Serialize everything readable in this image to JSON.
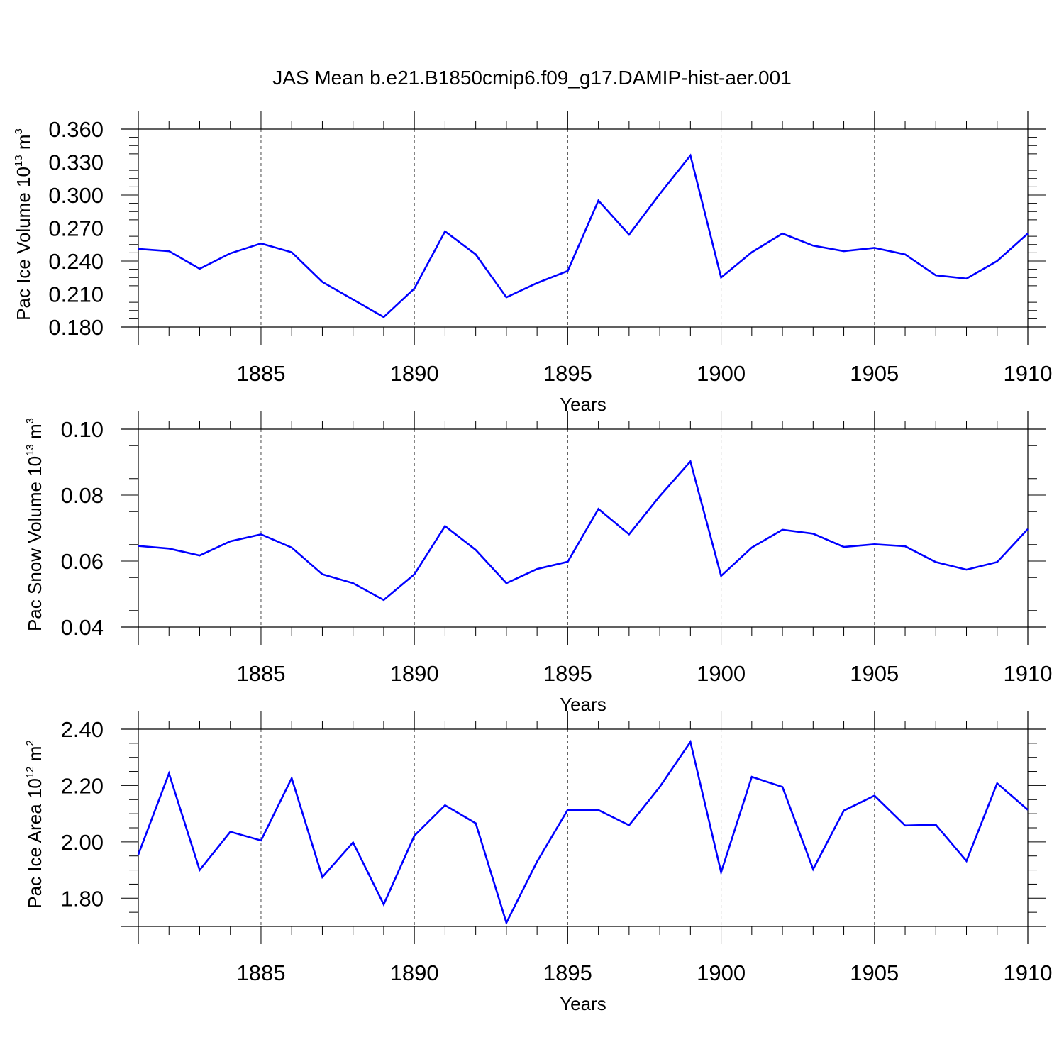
{
  "title": "JAS Mean b.e21.B1850cmip6.f09_g17.DAMIP-hist-aer.001",
  "colors": {
    "line": "#0000ff",
    "axes": "#000000",
    "grid": "#000000",
    "background": "#ffffff"
  },
  "chart_data": [
    {
      "type": "line",
      "xlabel": "Years",
      "ylabel_text": "Pac Ice Volume 10",
      "ylabel_exp": "13",
      "ylabel_unit": " m",
      "ylabel_unit_exp": "3",
      "xlim": [
        1881,
        1910
      ],
      "ylim": [
        0.18,
        0.36
      ],
      "x_ticks": [
        1885,
        1890,
        1895,
        1900,
        1905,
        1910
      ],
      "x_tick_labels": [
        "1885",
        "1890",
        "1895",
        "1900",
        "1905",
        "1910"
      ],
      "y_ticks": [
        0.18,
        0.21,
        0.24,
        0.27,
        0.3,
        0.33,
        0.36
      ],
      "y_tick_labels": [
        "0.180",
        "0.210",
        "0.240",
        "0.270",
        "0.300",
        "0.330",
        "0.360"
      ],
      "y_minor_step": 0.0075,
      "x_minor_step": 1,
      "grid": "vertical dashed at major x ticks",
      "x": [
        1881,
        1882,
        1883,
        1884,
        1885,
        1886,
        1887,
        1888,
        1889,
        1890,
        1891,
        1892,
        1893,
        1894,
        1895,
        1896,
        1897,
        1898,
        1899,
        1900,
        1901,
        1902,
        1903,
        1904,
        1905,
        1906,
        1907,
        1908,
        1909,
        1910
      ],
      "series": [
        {
          "values": [
            0.251,
            0.249,
            0.233,
            0.247,
            0.256,
            0.248,
            0.221,
            0.205,
            0.189,
            0.215,
            0.267,
            0.246,
            0.207,
            0.22,
            0.231,
            0.295,
            0.264,
            0.301,
            0.336,
            0.225,
            0.248,
            0.265,
            0.254,
            0.249,
            0.252,
            0.246,
            0.227,
            0.224,
            0.24,
            0.265
          ]
        }
      ]
    },
    {
      "type": "line",
      "xlabel": "Years",
      "ylabel_text": "Pac Snow Volume 10",
      "ylabel_exp": "13",
      "ylabel_unit": " m",
      "ylabel_unit_exp": "3",
      "xlim": [
        1881,
        1910
      ],
      "ylim": [
        0.04,
        0.1
      ],
      "x_ticks": [
        1885,
        1890,
        1895,
        1900,
        1905,
        1910
      ],
      "x_tick_labels": [
        "1885",
        "1890",
        "1895",
        "1900",
        "1905",
        "1910"
      ],
      "y_ticks": [
        0.04,
        0.06,
        0.08,
        0.1
      ],
      "y_tick_labels": [
        "0.04",
        "0.06",
        "0.08",
        "0.10"
      ],
      "y_minor_step": 0.005,
      "x_minor_step": 1,
      "grid": "vertical dashed at major x ticks",
      "x": [
        1881,
        1882,
        1883,
        1884,
        1885,
        1886,
        1887,
        1888,
        1889,
        1890,
        1891,
        1892,
        1893,
        1894,
        1895,
        1896,
        1897,
        1898,
        1899,
        1900,
        1901,
        1902,
        1903,
        1904,
        1905,
        1906,
        1907,
        1908,
        1909,
        1910
      ],
      "series": [
        {
          "values": [
            0.0646,
            0.0638,
            0.0617,
            0.066,
            0.0681,
            0.0641,
            0.056,
            0.0533,
            0.0482,
            0.056,
            0.0706,
            0.0634,
            0.0533,
            0.0576,
            0.0598,
            0.0758,
            0.0681,
            0.0797,
            0.0902,
            0.0555,
            0.0641,
            0.0695,
            0.0683,
            0.0643,
            0.0651,
            0.0645,
            0.0597,
            0.0574,
            0.0597,
            0.0697
          ]
        }
      ]
    },
    {
      "type": "line",
      "xlabel": "Years",
      "ylabel_text": "Pac Ice Area 10",
      "ylabel_exp": "12",
      "ylabel_unit": " m",
      "ylabel_unit_exp": "2",
      "xlim": [
        1881,
        1910
      ],
      "ylim": [
        1.7,
        2.4
      ],
      "x_ticks": [
        1885,
        1890,
        1895,
        1900,
        1905,
        1910
      ],
      "x_tick_labels": [
        "1885",
        "1890",
        "1895",
        "1900",
        "1905",
        "1910"
      ],
      "y_ticks": [
        1.8,
        2.0,
        2.2,
        2.4
      ],
      "y_tick_labels": [
        "1.80",
        "2.00",
        "2.20",
        "2.40"
      ],
      "y_minor_step": 0.05,
      "x_minor_step": 1,
      "grid": "vertical dashed at major x ticks",
      "x": [
        1881,
        1882,
        1883,
        1884,
        1885,
        1886,
        1887,
        1888,
        1889,
        1890,
        1891,
        1892,
        1893,
        1894,
        1895,
        1896,
        1897,
        1898,
        1899,
        1900,
        1901,
        1902,
        1903,
        1904,
        1905,
        1906,
        1907,
        1908,
        1909,
        1910
      ],
      "series": [
        {
          "values": [
            1.955,
            2.243,
            1.9,
            2.036,
            2.005,
            2.226,
            1.875,
            1.998,
            1.778,
            2.022,
            2.13,
            2.066,
            1.713,
            1.93,
            2.114,
            2.113,
            2.059,
            2.195,
            2.355,
            1.892,
            2.231,
            2.195,
            1.903,
            2.111,
            2.164,
            2.058,
            2.061,
            1.932,
            2.208,
            2.114
          ]
        }
      ]
    }
  ]
}
